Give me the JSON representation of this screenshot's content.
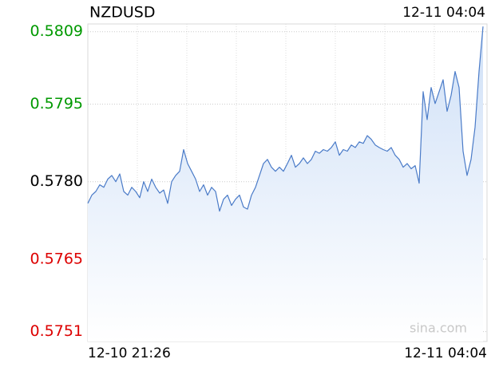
{
  "chart_data": {
    "type": "line",
    "title": "NZDUSD",
    "time": "12-11 04:04",
    "watermark": "sina.com",
    "categories": [
      "12-10 21:26",
      null,
      null,
      null,
      null,
      null,
      null,
      null,
      null,
      null,
      null,
      null,
      null,
      null,
      null,
      null,
      null,
      null,
      null,
      null,
      null,
      null,
      null,
      null,
      null,
      null,
      null,
      null,
      null,
      null,
      null,
      null,
      null,
      null,
      null,
      null,
      null,
      null,
      null,
      null,
      null,
      null,
      null,
      null,
      null,
      null,
      null,
      null,
      null,
      null,
      null,
      null,
      null,
      null,
      null,
      null,
      null,
      null,
      null,
      null,
      null,
      null,
      null,
      null,
      null,
      null,
      null,
      null,
      null,
      null,
      null,
      null,
      null,
      null,
      null,
      null,
      null,
      null,
      null,
      null,
      null,
      null,
      null,
      null,
      null,
      null,
      null,
      null,
      null,
      null,
      null,
      null,
      null,
      null,
      null,
      null,
      null,
      null,
      null,
      "12-11 04:04"
    ],
    "series": [
      {
        "name": "NZDUSD",
        "color": "#4a7bc8",
        "values": [
          0.57758,
          0.57774,
          0.57781,
          0.57794,
          0.57789,
          0.57805,
          0.57812,
          0.578,
          0.57815,
          0.57781,
          0.57774,
          0.57789,
          0.57781,
          0.57769,
          0.578,
          0.57781,
          0.57805,
          0.57789,
          0.57778,
          0.57784,
          0.57758,
          0.578,
          0.57812,
          0.5782,
          0.57862,
          0.57835,
          0.5782,
          0.57805,
          0.57781,
          0.57794,
          0.57774,
          0.57789,
          0.57781,
          0.57743,
          0.57766,
          0.57774,
          0.57754,
          0.57766,
          0.57774,
          0.57751,
          0.57747,
          0.57774,
          0.57789,
          0.57812,
          0.57835,
          0.57843,
          0.57828,
          0.5782,
          0.57828,
          0.5782,
          0.57835,
          0.57851,
          0.57828,
          0.57835,
          0.57846,
          0.57835,
          0.57843,
          0.57859,
          0.57855,
          0.57862,
          0.57859,
          0.57866,
          0.57877,
          0.57851,
          0.57862,
          0.57859,
          0.57871,
          0.57866,
          0.57877,
          0.57874,
          0.57889,
          0.57882,
          0.57871,
          0.57866,
          0.57862,
          0.57859,
          0.57866,
          0.57851,
          0.57843,
          0.57828,
          0.57835,
          0.57825,
          0.57831,
          0.57797,
          0.57974,
          0.5792,
          0.57982,
          0.57951,
          0.57974,
          0.57997,
          0.57936,
          0.57967,
          0.58013,
          0.57982,
          0.57859,
          0.57812,
          0.57843,
          0.57905,
          0.58013,
          0.581
        ]
      }
    ],
    "ylim": [
      0.57491,
      0.58105
    ],
    "yticks": [
      {
        "value": 0.5809,
        "label": "0.5809"
      },
      {
        "value": 0.5795,
        "label": "0.5795"
      },
      {
        "value": 0.578,
        "label": "0.5780"
      },
      {
        "value": 0.5765,
        "label": "0.5765"
      },
      {
        "value": 0.5751,
        "label": "0.5751"
      }
    ],
    "ytick_colors": [
      "#009900",
      "#009900",
      "#000000",
      "#dd0000",
      "#dd0000"
    ],
    "grid": true
  }
}
